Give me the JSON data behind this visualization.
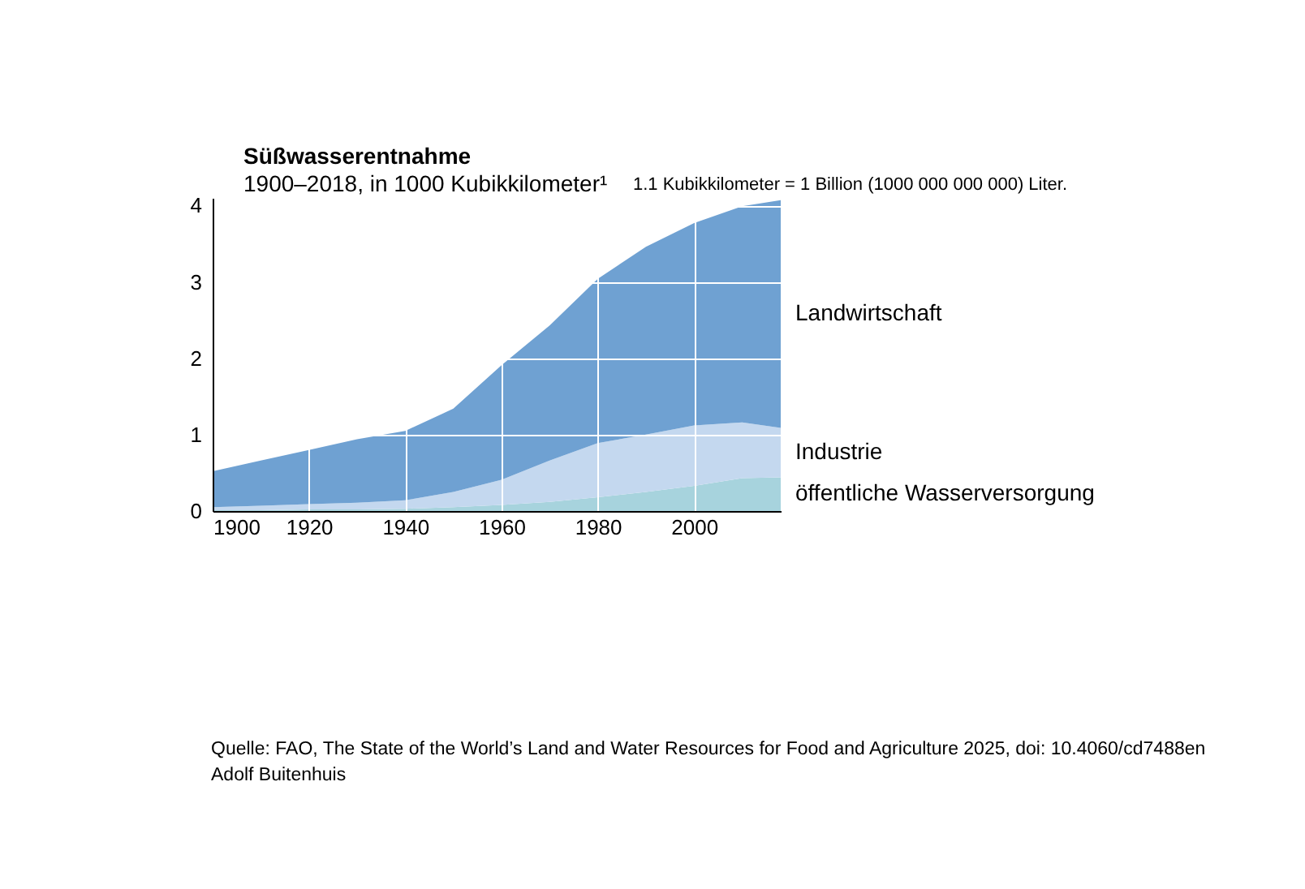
{
  "chart_data": {
    "type": "area",
    "title": "Süßwasserentnahme",
    "subtitle": "1900–2018, in 1000 Kubikkilometer¹",
    "stacked": true,
    "x": [
      1900,
      1910,
      1920,
      1930,
      1940,
      1950,
      1960,
      1970,
      1980,
      1990,
      2000,
      2010,
      2018
    ],
    "series": [
      {
        "name": "öffentliche Wasserversorgung",
        "color": "#a7d3dd",
        "values": [
          0.01,
          0.01,
          0.02,
          0.02,
          0.03,
          0.05,
          0.08,
          0.12,
          0.18,
          0.25,
          0.33,
          0.43,
          0.44
        ]
      },
      {
        "name": "Industrie",
        "color": "#c4d8ef",
        "values": [
          0.04,
          0.06,
          0.07,
          0.09,
          0.11,
          0.2,
          0.33,
          0.54,
          0.71,
          0.75,
          0.79,
          0.73,
          0.65
        ]
      },
      {
        "name": "Landwirtschaft",
        "color": "#6fa1d2",
        "values": [
          0.47,
          0.59,
          0.71,
          0.83,
          0.91,
          1.09,
          1.5,
          1.77,
          2.15,
          2.46,
          2.65,
          2.83,
          2.98
        ]
      }
    ],
    "xlim": [
      1900,
      2018
    ],
    "xticks": [
      1900,
      1920,
      1940,
      1960,
      1980,
      2000
    ],
    "ylim": [
      0,
      4.1
    ],
    "yticks": [
      0,
      1,
      2,
      3,
      4
    ],
    "grid": true,
    "annotations": [
      "1.1 Kubikkilometer = 1 Billion (1000 000 000 000) Liter.",
      "Quelle: FAO, The State of the World’s Land and Water Resources for Food and Agriculture 2025, doi: 10.4060/cd7488en",
      "Adolf Buitenhuis"
    ]
  }
}
